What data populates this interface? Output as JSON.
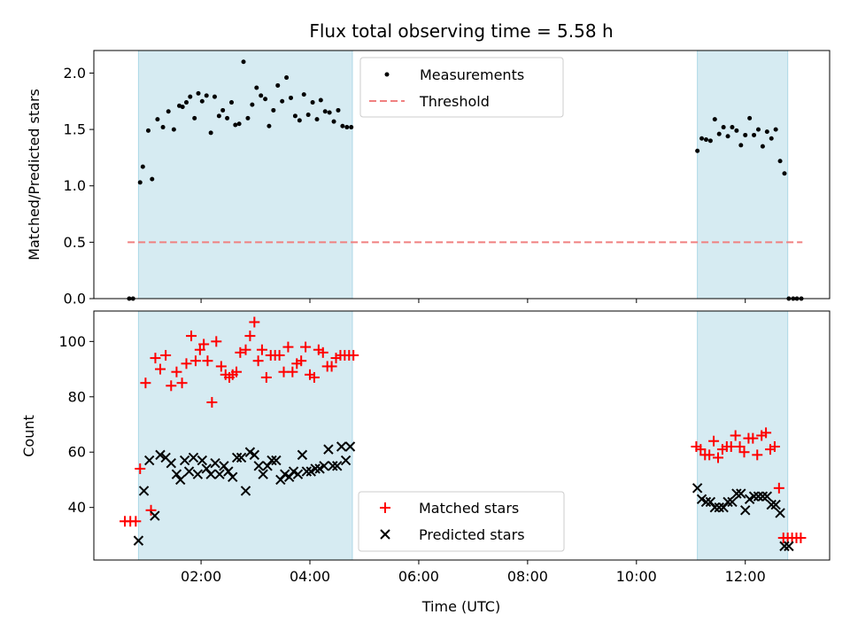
{
  "chart_data": [
    {
      "type": "scatter",
      "panel": "top",
      "title": "Flux total observing time = 5.58 h",
      "xlabel": "",
      "ylabel": "Matched/Predicted stars",
      "xlim": [
        0.03,
        13.55
      ],
      "ylim": [
        0,
        2.2
      ],
      "yticks": [
        0,
        0.5,
        1,
        1.5,
        2
      ],
      "ytick_labels": [
        "0.0",
        "0.5",
        "1.0",
        "1.5",
        "2.0"
      ],
      "xticks": [
        2,
        4,
        6,
        8,
        10,
        12
      ],
      "show_xtick_labels": false,
      "shaded_spans": [
        [
          0.85,
          4.78
        ],
        [
          11.12,
          12.78
        ]
      ],
      "shade_color": "#add8e6",
      "threshold": {
        "name": "Threshold",
        "value": 0.5,
        "x_range": [
          0.65,
          13.05
        ],
        "color": "#f08080"
      },
      "legend": {
        "position": "upper center",
        "entries": [
          "Measurements",
          "Threshold"
        ]
      },
      "series": [
        {
          "name": "Measurements",
          "marker": "dot",
          "color": "#000000",
          "x": [
            0.68,
            0.75,
            0.88,
            0.93,
            1.03,
            1.1,
            1.2,
            1.3,
            1.4,
            1.5,
            1.6,
            1.66,
            1.73,
            1.8,
            1.88,
            1.95,
            2.02,
            2.1,
            2.18,
            2.25,
            2.33,
            2.4,
            2.48,
            2.56,
            2.63,
            2.7,
            2.78,
            2.86,
            2.94,
            3.02,
            3.1,
            3.18,
            3.25,
            3.33,
            3.41,
            3.49,
            3.57,
            3.65,
            3.73,
            3.81,
            3.89,
            3.97,
            4.05,
            4.13,
            4.2,
            4.28,
            4.36,
            4.44,
            4.52,
            4.6,
            4.68,
            4.76,
            11.12,
            11.2,
            11.28,
            11.36,
            11.44,
            11.52,
            11.6,
            11.68,
            11.76,
            11.84,
            11.92,
            12.0,
            12.08,
            12.16,
            12.24,
            12.32,
            12.4,
            12.48,
            12.56,
            12.64,
            12.72,
            12.8,
            12.88,
            12.95,
            13.03
          ],
          "y": [
            0,
            0,
            1.03,
            1.17,
            1.49,
            1.06,
            1.59,
            1.52,
            1.66,
            1.5,
            1.71,
            1.7,
            1.74,
            1.79,
            1.6,
            1.82,
            1.75,
            1.8,
            1.47,
            1.79,
            1.62,
            1.67,
            1.6,
            1.74,
            1.54,
            1.55,
            2.1,
            1.6,
            1.72,
            1.87,
            1.8,
            1.77,
            1.53,
            1.67,
            1.89,
            1.75,
            1.96,
            1.78,
            1.62,
            1.58,
            1.81,
            1.63,
            1.74,
            1.59,
            1.76,
            1.66,
            1.65,
            1.57,
            1.67,
            1.53,
            1.52,
            1.52,
            1.31,
            1.42,
            1.41,
            1.4,
            1.59,
            1.46,
            1.52,
            1.44,
            1.52,
            1.49,
            1.36,
            1.45,
            1.6,
            1.45,
            1.5,
            1.35,
            1.48,
            1.42,
            1.5,
            1.22,
            1.11,
            0,
            0,
            0,
            0
          ]
        }
      ]
    },
    {
      "type": "scatter",
      "panel": "bottom",
      "xlabel": "Time (UTC)",
      "ylabel": "Count",
      "xlim": [
        0.03,
        13.55
      ],
      "ylim": [
        21,
        111
      ],
      "yticks": [
        40,
        60,
        80,
        100
      ],
      "ytick_labels": [
        "40",
        "60",
        "80",
        "100"
      ],
      "xticks": [
        2,
        4,
        6,
        8,
        10,
        12
      ],
      "xtick_labels": [
        "02:00",
        "04:00",
        "06:00",
        "08:00",
        "10:00",
        "12:00"
      ],
      "shaded_spans": [
        [
          0.85,
          4.78
        ],
        [
          11.12,
          12.78
        ]
      ],
      "shade_color": "#add8e6",
      "legend": {
        "position": "lower center",
        "entries": [
          "Matched stars",
          "Predicted stars"
        ]
      },
      "series": [
        {
          "name": "Matched stars",
          "marker": "plus",
          "color": "#ff0000",
          "x": [
            0.6,
            0.7,
            0.8,
            0.88,
            0.98,
            1.08,
            1.16,
            1.25,
            1.35,
            1.45,
            1.55,
            1.65,
            1.73,
            1.82,
            1.9,
            1.98,
            2.05,
            2.12,
            2.2,
            2.28,
            2.37,
            2.45,
            2.52,
            2.58,
            2.65,
            2.72,
            2.82,
            2.9,
            2.98,
            3.05,
            3.12,
            3.2,
            3.28,
            3.36,
            3.44,
            3.52,
            3.6,
            3.68,
            3.76,
            3.84,
            3.92,
            4.0,
            4.08,
            4.16,
            4.24,
            4.32,
            4.4,
            4.48,
            4.56,
            4.64,
            4.72,
            4.8,
            11.1,
            11.18,
            11.26,
            11.34,
            11.42,
            11.5,
            11.58,
            11.66,
            11.74,
            11.82,
            11.9,
            11.98,
            12.06,
            12.14,
            12.22,
            12.3,
            12.38,
            12.46,
            12.54,
            12.62,
            12.7,
            12.78,
            12.86,
            12.94,
            13.02
          ],
          "y": [
            35,
            35,
            35,
            54,
            85,
            39,
            94,
            90,
            95,
            84,
            89,
            85,
            92,
            102,
            93,
            97,
            99,
            93,
            78,
            100,
            91,
            88,
            87,
            88,
            89,
            96,
            97,
            102,
            107,
            93,
            97,
            87,
            95,
            95,
            95,
            89,
            98,
            89,
            92,
            93,
            98,
            88,
            87,
            97,
            96,
            91,
            91,
            94,
            95,
            95,
            95,
            95,
            62,
            61,
            59,
            59,
            64,
            58,
            61,
            62,
            62,
            66,
            62,
            60,
            65,
            65,
            59,
            66,
            67,
            61,
            62,
            47,
            29,
            29,
            29,
            29,
            29
          ]
        },
        {
          "name": "Predicted stars",
          "marker": "x",
          "color": "#000000",
          "x": [
            0.85,
            0.95,
            1.05,
            1.15,
            1.25,
            1.35,
            1.45,
            1.55,
            1.62,
            1.7,
            1.78,
            1.86,
            1.94,
            2.02,
            2.1,
            2.18,
            2.26,
            2.34,
            2.42,
            2.5,
            2.58,
            2.66,
            2.74,
            2.82,
            2.9,
            2.98,
            3.06,
            3.14,
            3.22,
            3.3,
            3.38,
            3.46,
            3.54,
            3.62,
            3.7,
            3.78,
            3.86,
            3.94,
            4.02,
            4.1,
            4.18,
            4.26,
            4.34,
            4.42,
            4.5,
            4.58,
            4.66,
            4.74,
            11.12,
            11.2,
            11.28,
            11.36,
            11.44,
            11.52,
            11.6,
            11.68,
            11.76,
            11.84,
            11.92,
            12.0,
            12.08,
            12.16,
            12.24,
            12.32,
            12.4,
            12.48,
            12.56,
            12.64,
            12.72,
            12.8
          ],
          "y": [
            28,
            46,
            57,
            37,
            59,
            58,
            56,
            52,
            50,
            57,
            53,
            58,
            52,
            57,
            54,
            52,
            56,
            52,
            55,
            53,
            51,
            58,
            58,
            46,
            60,
            59,
            55,
            52,
            55,
            57,
            57,
            50,
            52,
            51,
            53,
            52,
            59,
            53,
            53,
            54,
            54,
            55,
            61,
            55,
            55,
            62,
            57,
            62,
            47,
            43,
            42,
            42,
            40,
            40,
            40,
            42,
            42,
            45,
            45,
            39,
            43,
            44,
            44,
            44,
            44,
            41,
            41,
            38,
            26,
            26
          ]
        }
      ]
    }
  ]
}
